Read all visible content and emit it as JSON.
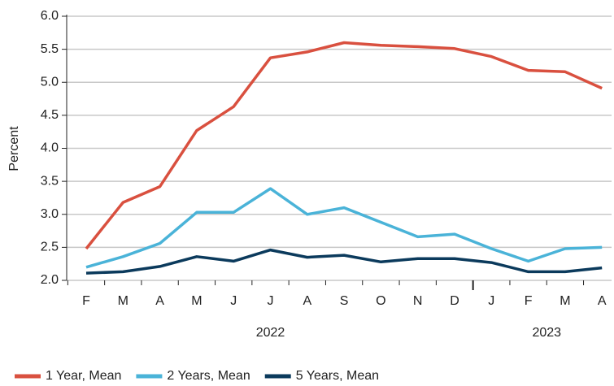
{
  "chart_data": {
    "type": "line",
    "ylabel": "Percent",
    "categories": [
      "F",
      "M",
      "A",
      "M",
      "J",
      "J",
      "A",
      "S",
      "O",
      "N",
      "D",
      "J",
      "F",
      "M",
      "A"
    ],
    "x_groups": [
      {
        "label": "2022",
        "from": 0,
        "to": 10
      },
      {
        "label": "2023",
        "from": 11,
        "to": 14
      }
    ],
    "series": [
      {
        "name": "1 Year, Mean",
        "color": "#d9503f",
        "values": [
          2.48,
          3.18,
          3.42,
          4.27,
          4.63,
          5.37,
          5.46,
          5.6,
          5.56,
          5.54,
          5.51,
          5.39,
          5.18,
          5.16,
          4.91
        ]
      },
      {
        "name": "2 Years, Mean",
        "color": "#4ab3d8",
        "values": [
          2.2,
          2.36,
          2.56,
          3.03,
          3.03,
          3.39,
          3.0,
          3.1,
          2.88,
          2.66,
          2.7,
          2.48,
          2.29,
          2.48,
          2.5
        ]
      },
      {
        "name": "5 Years, Mean",
        "color": "#0b3a5c",
        "values": [
          2.11,
          2.13,
          2.21,
          2.36,
          2.29,
          2.46,
          2.35,
          2.38,
          2.28,
          2.33,
          2.33,
          2.27,
          2.13,
          2.13,
          2.19
        ]
      }
    ],
    "ylim": [
      2.0,
      6.0
    ],
    "yticks": [
      {
        "value": 2.0,
        "label": "2.0"
      },
      {
        "value": 2.5,
        "label": "2.5"
      },
      {
        "value": 3.0,
        "label": "3.0"
      },
      {
        "value": 3.5,
        "label": "3.5"
      },
      {
        "value": 4.0,
        "label": "4.0"
      },
      {
        "value": 4.5,
        "label": "4.5"
      },
      {
        "value": 5.0,
        "label": "5.0"
      },
      {
        "value": 5.5,
        "label": "5.5"
      },
      {
        "value": 6.0,
        "label": "6.0"
      }
    ],
    "grid": true,
    "legend": "bottom"
  }
}
